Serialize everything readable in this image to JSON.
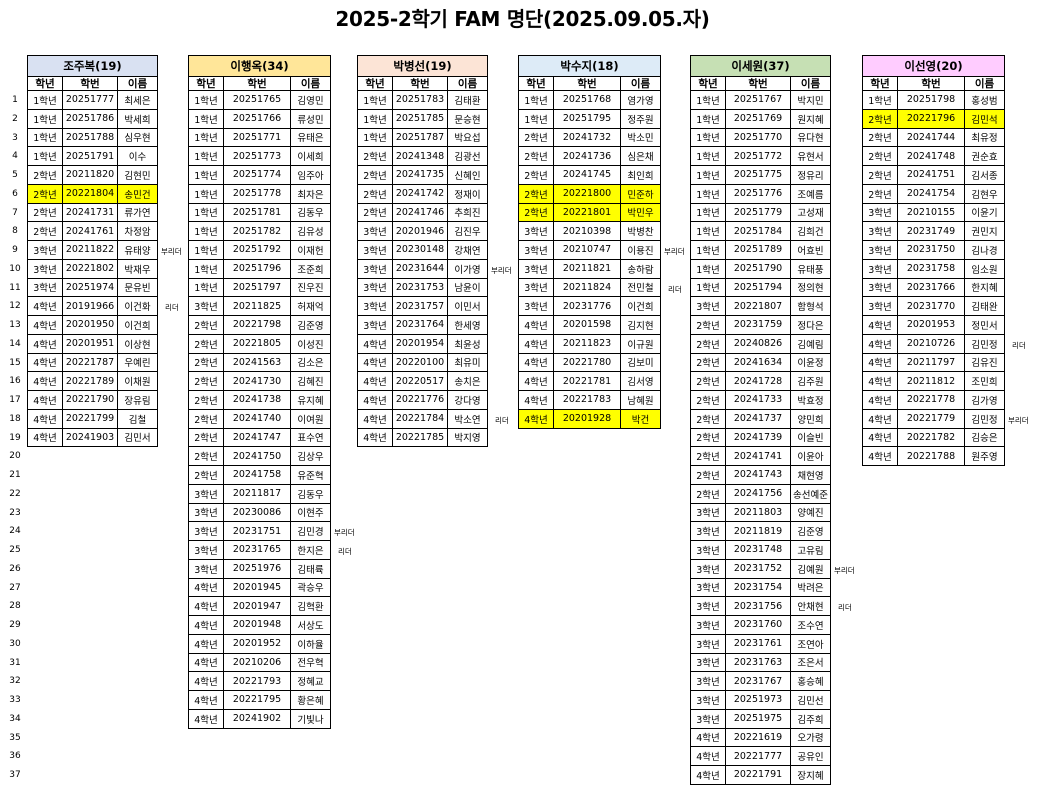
{
  "title": "2025-2학기 FAM 명단(2025.09.05.자)",
  "columns": [
    "학년",
    "학번",
    "이름"
  ],
  "row_numbers": [
    1,
    2,
    3,
    4,
    5,
    6,
    7,
    8,
    9,
    10,
    11,
    12,
    13,
    14,
    15,
    16,
    17,
    18,
    19,
    20,
    21,
    22,
    23,
    24,
    25,
    26,
    27,
    28,
    29,
    30,
    31,
    32,
    33,
    34,
    35,
    36,
    37
  ],
  "highlight_color": "#ffff00",
  "groups": [
    {
      "header": "조주복(19)",
      "color": "#d9e1f2",
      "rows": [
        [
          "1학년",
          "20251777",
          "최세은",
          "",
          false
        ],
        [
          "1학년",
          "20251786",
          "박세희",
          "",
          false
        ],
        [
          "1학년",
          "20251788",
          "심우현",
          "",
          false
        ],
        [
          "1학년",
          "20251791",
          "이수",
          "",
          false
        ],
        [
          "2학년",
          "20211820",
          "김현민",
          "",
          false
        ],
        [
          "2학년",
          "20221804",
          "송민건",
          "",
          true
        ],
        [
          "2학년",
          "20241731",
          "류가연",
          "",
          false
        ],
        [
          "2학년",
          "20241761",
          "차정암",
          "",
          false
        ],
        [
          "3학년",
          "20211822",
          "유태양",
          "부리더",
          false
        ],
        [
          "3학년",
          "20221802",
          "박재우",
          "",
          false
        ],
        [
          "3학년",
          "20251974",
          "문유빈",
          "",
          false
        ],
        [
          "4학년",
          "20191966",
          "이건화",
          "리더",
          false
        ],
        [
          "4학년",
          "20201950",
          "이건희",
          "",
          false
        ],
        [
          "4학년",
          "20201951",
          "이상현",
          "",
          false
        ],
        [
          "4학년",
          "20221787",
          "우예린",
          "",
          false
        ],
        [
          "4학년",
          "20221789",
          "이채원",
          "",
          false
        ],
        [
          "4학년",
          "20221790",
          "장유림",
          "",
          false
        ],
        [
          "4학년",
          "20221799",
          "김철",
          "",
          false
        ],
        [
          "4학년",
          "20241903",
          "김민서",
          "",
          false
        ]
      ]
    },
    {
      "header": "이행옥(34)",
      "color": "#ffe699",
      "rows": [
        [
          "1학년",
          "20251765",
          "김영민",
          "",
          false
        ],
        [
          "1학년",
          "20251766",
          "류성민",
          "",
          false
        ],
        [
          "1학년",
          "20251771",
          "유태은",
          "",
          false
        ],
        [
          "1학년",
          "20251773",
          "이세희",
          "",
          false
        ],
        [
          "1학년",
          "20251774",
          "임주아",
          "",
          false
        ],
        [
          "1학년",
          "20251778",
          "최자은",
          "",
          false
        ],
        [
          "1학년",
          "20251781",
          "김동우",
          "",
          false
        ],
        [
          "1학년",
          "20251782",
          "김유성",
          "",
          false
        ],
        [
          "1학년",
          "20251792",
          "이재헌",
          "",
          false
        ],
        [
          "1학년",
          "20251796",
          "조준희",
          "",
          false
        ],
        [
          "1학년",
          "20251797",
          "진우진",
          "",
          false
        ],
        [
          "3학년",
          "20211825",
          "허재억",
          "",
          false
        ],
        [
          "2학년",
          "20221798",
          "김준영",
          "",
          false
        ],
        [
          "2학년",
          "20221805",
          "이성진",
          "",
          false
        ],
        [
          "2학년",
          "20241563",
          "김소은",
          "",
          false
        ],
        [
          "2학년",
          "20241730",
          "김혜진",
          "",
          false
        ],
        [
          "2학년",
          "20241738",
          "유지혜",
          "",
          false
        ],
        [
          "2학년",
          "20241740",
          "이여원",
          "",
          false
        ],
        [
          "2학년",
          "20241747",
          "표수연",
          "",
          false
        ],
        [
          "2학년",
          "20241750",
          "김상우",
          "",
          false
        ],
        [
          "2학년",
          "20241758",
          "유준혁",
          "",
          false
        ],
        [
          "3학년",
          "20211817",
          "김동우",
          "",
          false
        ],
        [
          "3학년",
          "20230086",
          "이현주",
          "",
          false
        ],
        [
          "3학년",
          "20231751",
          "김민경",
          "부리더",
          false
        ],
        [
          "3학년",
          "20231765",
          "한지은",
          "리더",
          false
        ],
        [
          "3학년",
          "20251976",
          "김태륙",
          "",
          false
        ],
        [
          "4학년",
          "20201945",
          "곽승우",
          "",
          false
        ],
        [
          "4학년",
          "20201947",
          "김혁환",
          "",
          false
        ],
        [
          "4학년",
          "20201948",
          "서상도",
          "",
          false
        ],
        [
          "4학년",
          "20201952",
          "이하율",
          "",
          false
        ],
        [
          "4학년",
          "20210206",
          "전우혁",
          "",
          false
        ],
        [
          "4학년",
          "20221793",
          "정혜교",
          "",
          false
        ],
        [
          "4학년",
          "20221795",
          "황은혜",
          "",
          false
        ],
        [
          "4학년",
          "20241902",
          "기빛나",
          "",
          false
        ]
      ]
    },
    {
      "header": "박병선(19)",
      "color": "#fce4d6",
      "rows": [
        [
          "1학년",
          "20251783",
          "김태환",
          "",
          false
        ],
        [
          "1학년",
          "20251785",
          "문승현",
          "",
          false
        ],
        [
          "1학년",
          "20251787",
          "박요섭",
          "",
          false
        ],
        [
          "2학년",
          "20241348",
          "김광선",
          "",
          false
        ],
        [
          "2학년",
          "20241735",
          "신혜인",
          "",
          false
        ],
        [
          "2학년",
          "20241742",
          "정재이",
          "",
          false
        ],
        [
          "2학년",
          "20241746",
          "추희진",
          "",
          false
        ],
        [
          "3학년",
          "20201946",
          "김진우",
          "",
          false
        ],
        [
          "3학년",
          "20230148",
          "강채연",
          "",
          false
        ],
        [
          "3학년",
          "20231644",
          "이가영",
          "부리더",
          false
        ],
        [
          "3학년",
          "20231753",
          "남윤이",
          "",
          false
        ],
        [
          "3학년",
          "20231757",
          "이민서",
          "",
          false
        ],
        [
          "3학년",
          "20231764",
          "한세영",
          "",
          false
        ],
        [
          "4학년",
          "20201954",
          "최윤성",
          "",
          false
        ],
        [
          "4학년",
          "20220100",
          "최유미",
          "",
          false
        ],
        [
          "4학년",
          "20220517",
          "송치은",
          "",
          false
        ],
        [
          "4학년",
          "20221776",
          "강다영",
          "",
          false
        ],
        [
          "4학년",
          "20221784",
          "박소연",
          "리더",
          false
        ],
        [
          "4학년",
          "20221785",
          "박지영",
          "",
          false
        ]
      ]
    },
    {
      "header": "박수지(18)",
      "color": "#ddebf7",
      "rows": [
        [
          "1학년",
          "20251768",
          "염가영",
          "",
          false
        ],
        [
          "1학년",
          "20251795",
          "정주원",
          "",
          false
        ],
        [
          "2학년",
          "20241732",
          "박소민",
          "",
          false
        ],
        [
          "2학년",
          "20241736",
          "심은채",
          "",
          false
        ],
        [
          "2학년",
          "20241745",
          "최인희",
          "",
          false
        ],
        [
          "2학년",
          "20221800",
          "민준하",
          "",
          true
        ],
        [
          "2학년",
          "20221801",
          "박민우",
          "",
          true
        ],
        [
          "3학년",
          "20210398",
          "박병찬",
          "",
          false
        ],
        [
          "3학년",
          "20210747",
          "이용진",
          "부리더",
          false
        ],
        [
          "3학년",
          "20211821",
          "송하람",
          "",
          false
        ],
        [
          "3학년",
          "20211824",
          "전민철",
          "리더",
          false
        ],
        [
          "3학년",
          "20231776",
          "이건희",
          "",
          false
        ],
        [
          "4학년",
          "20201598",
          "김지현",
          "",
          false
        ],
        [
          "4학년",
          "20211823",
          "이규원",
          "",
          false
        ],
        [
          "4학년",
          "20221780",
          "김보미",
          "",
          false
        ],
        [
          "4학년",
          "20221781",
          "김서영",
          "",
          false
        ],
        [
          "4학년",
          "20221783",
          "남혜원",
          "",
          false
        ],
        [
          "4학년",
          "20201928",
          "박건",
          "",
          true
        ]
      ]
    },
    {
      "header": "이세원(37)",
      "color": "#c6e0b4",
      "rows": [
        [
          "1학년",
          "20251767",
          "박지민",
          "",
          false
        ],
        [
          "1학년",
          "20251769",
          "원지혜",
          "",
          false
        ],
        [
          "1학년",
          "20251770",
          "유다현",
          "",
          false
        ],
        [
          "1학년",
          "20251772",
          "유현서",
          "",
          false
        ],
        [
          "1학년",
          "20251775",
          "정유리",
          "",
          false
        ],
        [
          "1학년",
          "20251776",
          "조예름",
          "",
          false
        ],
        [
          "1학년",
          "20251779",
          "고성재",
          "",
          false
        ],
        [
          "1학년",
          "20251784",
          "김희건",
          "",
          false
        ],
        [
          "1학년",
          "20251789",
          "어효빈",
          "",
          false
        ],
        [
          "1학년",
          "20251790",
          "유태풍",
          "",
          false
        ],
        [
          "1학년",
          "20251794",
          "정의현",
          "",
          false
        ],
        [
          "3학년",
          "20221807",
          "함형석",
          "",
          false
        ],
        [
          "2학년",
          "20231759",
          "정다은",
          "",
          false
        ],
        [
          "2학년",
          "20240826",
          "김예림",
          "",
          false
        ],
        [
          "2학년",
          "20241634",
          "이윤정",
          "",
          false
        ],
        [
          "2학년",
          "20241728",
          "김주원",
          "",
          false
        ],
        [
          "2학년",
          "20241733",
          "박효정",
          "",
          false
        ],
        [
          "2학년",
          "20241737",
          "양민희",
          "",
          false
        ],
        [
          "2학년",
          "20241739",
          "이슬빈",
          "",
          false
        ],
        [
          "2학년",
          "20241741",
          "이윤아",
          "",
          false
        ],
        [
          "2학년",
          "20241743",
          "채현영",
          "",
          false
        ],
        [
          "2학년",
          "20241756",
          "송선예준",
          "",
          false
        ],
        [
          "3학년",
          "20211803",
          "양예진",
          "",
          false
        ],
        [
          "3학년",
          "20211819",
          "김준영",
          "",
          false
        ],
        [
          "3학년",
          "20231748",
          "고유림",
          "",
          false
        ],
        [
          "3학년",
          "20231752",
          "김예원",
          "부리더",
          false
        ],
        [
          "3학년",
          "20231754",
          "박려은",
          "",
          false
        ],
        [
          "3학년",
          "20231756",
          "안채현",
          "리더",
          false
        ],
        [
          "3학년",
          "20231760",
          "조수연",
          "",
          false
        ],
        [
          "3학년",
          "20231761",
          "조연아",
          "",
          false
        ],
        [
          "3학년",
          "20231763",
          "조은서",
          "",
          false
        ],
        [
          "3학년",
          "20231767",
          "홍승혜",
          "",
          false
        ],
        [
          "3학년",
          "20251973",
          "김민선",
          "",
          false
        ],
        [
          "3학년",
          "20251975",
          "김주희",
          "",
          false
        ],
        [
          "4학년",
          "20221619",
          "오가령",
          "",
          false
        ],
        [
          "4학년",
          "20221777",
          "공유인",
          "",
          false
        ],
        [
          "4학년",
          "20221791",
          "장지혜",
          "",
          false
        ]
      ]
    },
    {
      "header": "이선영(20)",
      "color": "#ffccff",
      "rows": [
        [
          "1학년",
          "20251798",
          "홍성범",
          "",
          false
        ],
        [
          "2학년",
          "20221796",
          "김민석",
          "",
          true
        ],
        [
          "2학년",
          "20241744",
          "최유정",
          "",
          false
        ],
        [
          "2학년",
          "20241748",
          "권순효",
          "",
          false
        ],
        [
          "2학년",
          "20241751",
          "김서종",
          "",
          false
        ],
        [
          "2학년",
          "20241754",
          "김현우",
          "",
          false
        ],
        [
          "3학년",
          "20210155",
          "이윤기",
          "",
          false
        ],
        [
          "3학년",
          "20231749",
          "권민지",
          "",
          false
        ],
        [
          "3학년",
          "20231750",
          "김나경",
          "",
          false
        ],
        [
          "3학년",
          "20231758",
          "임소원",
          "",
          false
        ],
        [
          "3학년",
          "20231766",
          "한지혜",
          "",
          false
        ],
        [
          "3학년",
          "20231770",
          "김태완",
          "",
          false
        ],
        [
          "4학년",
          "20201953",
          "정민서",
          "",
          false
        ],
        [
          "4학년",
          "20210726",
          "김민정",
          "리더",
          false
        ],
        [
          "4학년",
          "20211797",
          "김유진",
          "",
          false
        ],
        [
          "4학년",
          "20211812",
          "조민희",
          "",
          false
        ],
        [
          "4학년",
          "20221778",
          "김가영",
          "",
          false
        ],
        [
          "4학년",
          "20221779",
          "김민정",
          "부리더",
          false
        ],
        [
          "4학년",
          "20221782",
          "김승은",
          "",
          false
        ],
        [
          "4학년",
          "20221788",
          "원주영",
          "",
          false
        ]
      ]
    }
  ]
}
